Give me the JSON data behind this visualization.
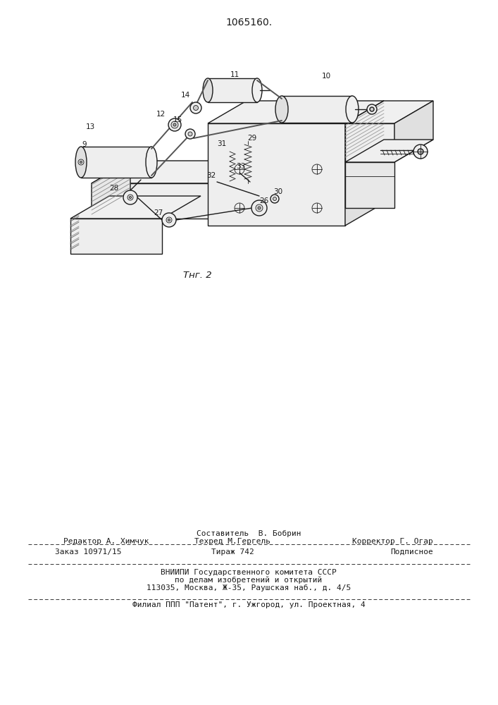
{
  "patent_number": "1065160.",
  "fig_label": "Τнг. 2",
  "background_color": "#ffffff",
  "text_color": "#1a1a1a",
  "footer_line1_center": "Составитель  В. Бобрин",
  "footer_line2_left": "Редактор А. Химчук",
  "footer_line2_center": "Техред М.Гергель",
  "footer_line2_right": "Корректор Г. Огар",
  "footer_line3_left": "Заказ 10971/15",
  "footer_line3_center": "Тираж 742",
  "footer_line3_right": "Подписное",
  "footer_line4": "ВНИИПИ Государственного комитета СССР",
  "footer_line5": "по делам изобретений и открытий",
  "footer_line6": "113035, Москва, Ж-35, Раушская наб., д. 4/5",
  "footer_line7": "Филиал ППП \"Патент\", г. Ужгород, ул. Проектная, 4"
}
